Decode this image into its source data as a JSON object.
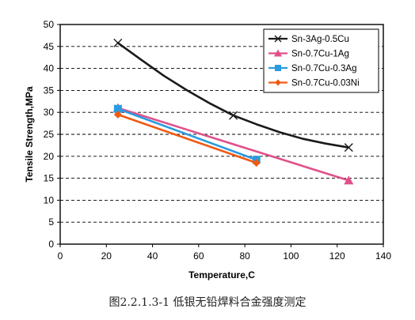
{
  "caption": "图2.2.1.3-1 低银无铅焊料合金强度测定",
  "chart_data": {
    "type": "line",
    "xlabel": "Temperature,C",
    "ylabel": "Tensile Strength,MPa",
    "xlim": [
      0,
      140
    ],
    "ylim": [
      0,
      50
    ],
    "x_ticks": [
      0,
      20,
      40,
      60,
      80,
      100,
      120,
      140
    ],
    "y_ticks": [
      0,
      5,
      10,
      15,
      20,
      25,
      30,
      35,
      40,
      45,
      50
    ],
    "grid": "horizontal-dashed",
    "legend_position": "top-right",
    "series": [
      {
        "name": "Sn-3Ag-0.5Cu",
        "color": "#1a1a1a",
        "marker": "x",
        "x": [
          25,
          35,
          45,
          55,
          65,
          75,
          85,
          95,
          105,
          115,
          125
        ],
        "y": [
          45.8,
          42.0,
          38.3,
          35.0,
          32.0,
          29.3,
          27.3,
          25.5,
          24.0,
          22.9,
          22.0
        ],
        "marker_x": [
          25,
          75,
          125
        ]
      },
      {
        "name": "Sn-0.7Cu-1Ag",
        "color": "#e0508a",
        "marker": "triangle",
        "x": [
          25,
          125
        ],
        "y": [
          31.0,
          14.5
        ],
        "marker_x": [
          25,
          125
        ]
      },
      {
        "name": "Sn-0.7Cu-0.3Ag",
        "color": "#2a9be0",
        "marker": "square",
        "x": [
          25,
          85
        ],
        "y": [
          30.8,
          19.2
        ],
        "marker_x": [
          25,
          85
        ]
      },
      {
        "name": "Sn-0.7Cu-0.03Ni",
        "color": "#f05a14",
        "marker": "diamond",
        "x": [
          25,
          85
        ],
        "y": [
          29.5,
          18.5
        ],
        "marker_x": [
          25,
          85
        ]
      }
    ]
  }
}
